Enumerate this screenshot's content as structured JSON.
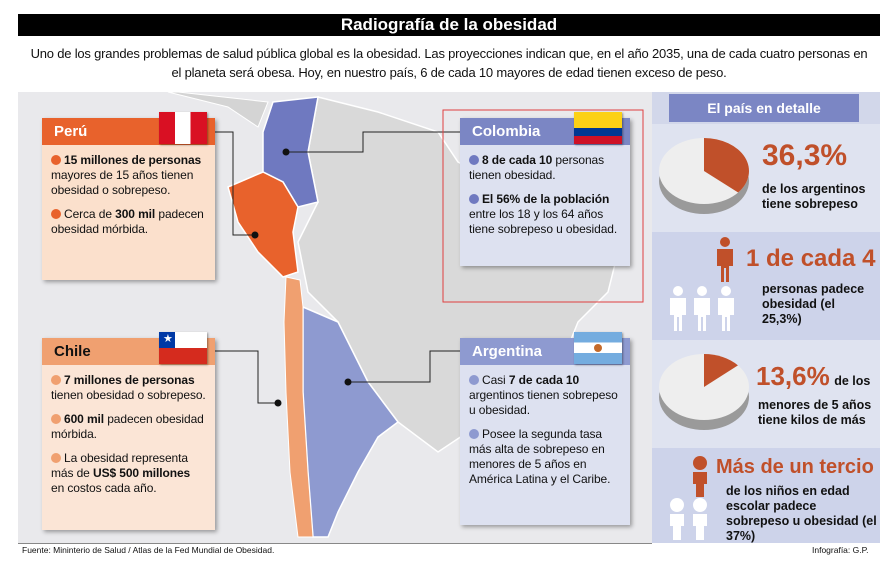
{
  "title": "Radiografía de la obesidad",
  "intro": "Uno de los grandes problemas de salud pública global es la obesidad. Las proyecciones indican que, en el año 2035, una de cada cuatro personas en el planeta será obesa. Hoy, en nuestro país, 6 de cada 10 mayores de edad tienen exceso de peso.",
  "colors": {
    "peru": "#e8622c",
    "chile": "#f0a070",
    "colombia": "#7b86c4",
    "argentina": "#8e9ad0",
    "accent": "#c0502a"
  },
  "peru": {
    "name": "Perú",
    "bullets": [
      [
        {
          "b": "15 millones de personas"
        },
        {
          "t": " mayores de 15 años tienen obesidad o sobrepeso."
        }
      ],
      [
        {
          "t": "Cerca de "
        },
        {
          "b": "300 mil"
        },
        {
          "t": " padecen obesidad mórbida."
        }
      ]
    ]
  },
  "colombia": {
    "name": "Colombia",
    "bullets": [
      [
        {
          "b": "8 de cada 10"
        },
        {
          "t": " personas tienen obesidad."
        }
      ],
      [
        {
          "b": "El 56% de la población"
        },
        {
          "t": " entre los 18 y los 64 años tiene sobrepeso u obesidad."
        }
      ]
    ]
  },
  "chile": {
    "name": "Chile",
    "bullets": [
      [
        {
          "b": "7 millones de personas"
        },
        {
          "t": " tienen obesidad o sobrepeso."
        }
      ],
      [
        {
          "b": "600 mil"
        },
        {
          "t": " padecen obesidad mórbida."
        }
      ],
      [
        {
          "t": "La obesidad representa más de "
        },
        {
          "b": "US$ 500 millones"
        },
        {
          "t": " en costos cada año."
        }
      ]
    ]
  },
  "argentina": {
    "name": "Argentina",
    "bullets": [
      [
        {
          "t": "Casi "
        },
        {
          "b": "7 de cada 10"
        },
        {
          "t": " argentinos tienen sobrepeso u obesidad."
        }
      ],
      [
        {
          "t": "Posee la segunda tasa más alta de sobrepeso en menores de 5 años en América Latina y el Caribe."
        }
      ]
    ]
  },
  "panel": {
    "heading": "El país en detalle",
    "stat1": {
      "value": "36,3%",
      "fraction": 0.363,
      "text": "de los argentinos tiene sobrepeso"
    },
    "stat2": {
      "value": "1 de cada 4",
      "text": "personas padece obesidad (el 25,3%)"
    },
    "stat3": {
      "value": "13,6%",
      "fraction": 0.136,
      "text_inline": "de los",
      "text": "menores de 5 años tiene kilos de más"
    },
    "stat4": {
      "value": "Más de un tercio",
      "text": "de los niños en edad escolar padece sobrepeso u obesidad (el 37%)"
    }
  },
  "footer": "Fuente: Mininterio de Salud / Atlas de la Fed Mundial de Obesidad.",
  "credit": "Infografía: G.P."
}
